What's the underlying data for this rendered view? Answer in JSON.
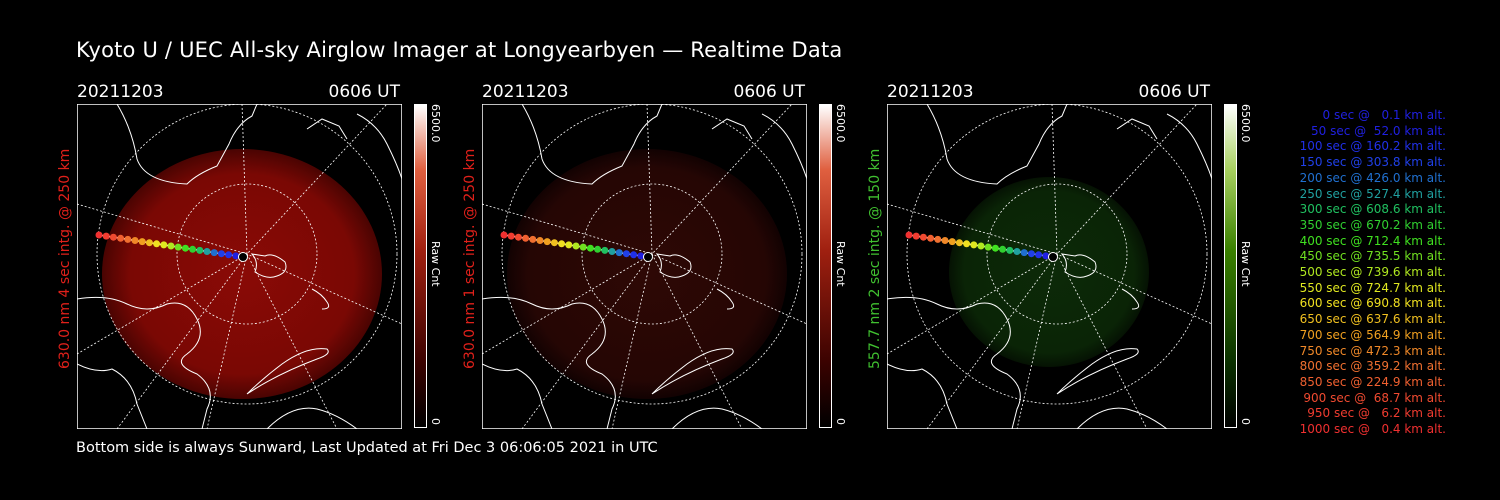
{
  "title": "Kyoto U / UEC All-sky Airglow Imager at Longyearbyen — Realtime Data",
  "footer": "Bottom side is always Sunward, Last Updated at Fri Dec  3 06:06:05 2021 in UTC",
  "panels": [
    {
      "date": "20211203",
      "time": "0606 UT",
      "ylabel": "630.0 nm 4 sec intg. @ 250 km",
      "label_color": "#e0201a",
      "cbar_max": "6500.0",
      "cbar_min": "0",
      "cbar_unit": "Raw Cnt",
      "colormap": "red",
      "intensity": "bright"
    },
    {
      "date": "20211203",
      "time": "0606 UT",
      "ylabel": "630.0 nm 1 sec intg. @ 250 km",
      "label_color": "#e0201a",
      "cbar_max": "6500.0",
      "cbar_min": "0",
      "cbar_unit": "Raw Cnt",
      "colormap": "red",
      "intensity": "dim"
    },
    {
      "date": "20211203",
      "time": "0606 UT",
      "ylabel": "557.7 nm 2 sec intg. @ 150 km",
      "label_color": "#40c030",
      "cbar_max": "6500.0",
      "cbar_min": "0",
      "cbar_unit": "Raw Cnt",
      "colormap": "green",
      "intensity": "dim"
    }
  ],
  "legend": [
    {
      "text": "0 sec @   0.1 km alt.",
      "color": "#2020e0"
    },
    {
      "text": "50 sec @  52.0 km alt.",
      "color": "#2020e0"
    },
    {
      "text": "100 sec @ 160.2 km alt.",
      "color": "#2030e8"
    },
    {
      "text": "150 sec @ 303.8 km alt.",
      "color": "#2040e8"
    },
    {
      "text": "200 sec @ 426.0 km alt.",
      "color": "#2070d0"
    },
    {
      "text": "250 sec @ 527.4 km alt.",
      "color": "#20a0a0"
    },
    {
      "text": "300 sec @ 608.6 km alt.",
      "color": "#20c060"
    },
    {
      "text": "350 sec @ 670.2 km alt.",
      "color": "#30d030"
    },
    {
      "text": "400 sec @ 712.4 km alt.",
      "color": "#40e020"
    },
    {
      "text": "450 sec @ 735.5 km alt.",
      "color": "#70e020"
    },
    {
      "text": "500 sec @ 739.6 km alt.",
      "color": "#b0e820"
    },
    {
      "text": "550 sec @ 724.7 km alt.",
      "color": "#e0e820"
    },
    {
      "text": "600 sec @ 690.8 km alt.",
      "color": "#f0e020"
    },
    {
      "text": "650 sec @ 637.6 km alt.",
      "color": "#f0c020"
    },
    {
      "text": "700 sec @ 564.9 km alt.",
      "color": "#f0a020"
    },
    {
      "text": "750 sec @ 472.3 km alt.",
      "color": "#f08828"
    },
    {
      "text": "800 sec @ 359.2 km alt.",
      "color": "#f07030"
    },
    {
      "text": "850 sec @ 224.9 km alt.",
      "color": "#f06030"
    },
    {
      "text": "900 sec @  68.7 km alt.",
      "color": "#f04a30"
    },
    {
      "text": "950 sec @   6.2 km alt.",
      "color": "#f03c30"
    },
    {
      "text": "1000 sec @   0.4 km alt.",
      "color": "#f03030"
    }
  ]
}
